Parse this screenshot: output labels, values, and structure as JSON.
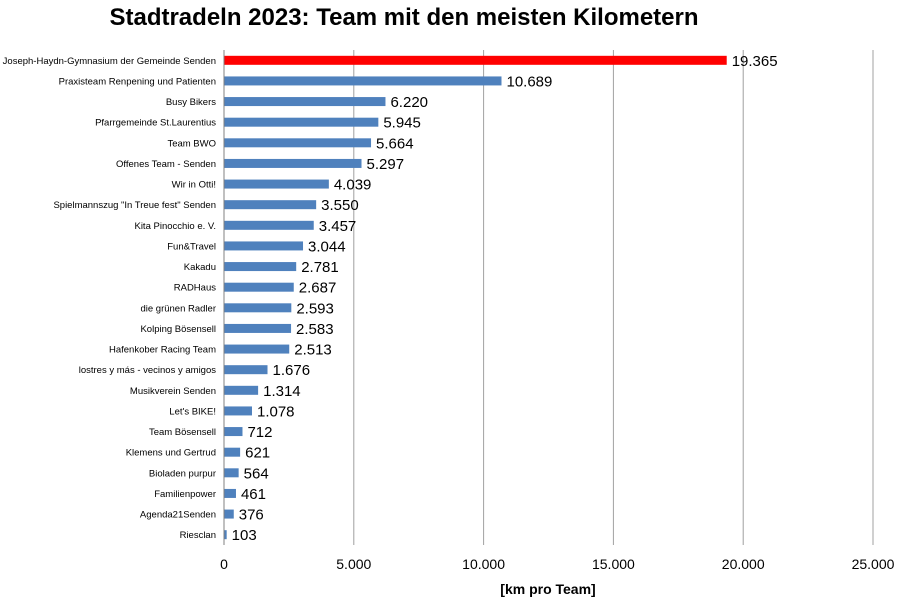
{
  "chart_data": {
    "type": "bar",
    "orientation": "horizontal",
    "title": "Stadtradeln 2023: Team mit den meisten Kilometern",
    "xlabel": "[km pro Team]",
    "ylabel": "",
    "xlim": [
      0,
      25000
    ],
    "xticks": [
      0,
      5000,
      10000,
      15000,
      20000,
      25000
    ],
    "xtick_labels": [
      "0",
      "5.000",
      "10.000",
      "15.000",
      "20.000",
      "25.000"
    ],
    "grid": "vertical",
    "legend": "none",
    "colors": {
      "default_bar": "#4f81bd",
      "highlight_bar": "#ff0000"
    },
    "highlight_index": 0,
    "categories": [
      "Joseph-Haydn-Gymnasium der Gemeinde Senden",
      "Praxisteam Renpening und Patienten",
      "Busy Bikers",
      "Pfarrgemeinde St.Laurentius",
      "Team BWO",
      "Offenes Team - Senden",
      "Wir in Otti!",
      "Spielmannszug \"In Treue fest\" Senden",
      "Kita Pinocchio e. V.",
      "Fun&Travel",
      "Kakadu",
      "RADHaus",
      "die grünen Radler",
      "Kolping Bösensell",
      "Hafenkober Racing Team",
      "lostres y más - vecinos y amigos",
      "Musikverein Senden",
      "Let's BIKE!",
      "Team Bösensell",
      "Klemens und Gertrud",
      "Bioladen purpur",
      "Familienpower",
      "Agenda21Senden",
      "Riesclan"
    ],
    "values": [
      19365,
      10689,
      6220,
      5945,
      5664,
      5297,
      4039,
      3550,
      3457,
      3044,
      2781,
      2687,
      2593,
      2583,
      2513,
      1676,
      1314,
      1078,
      712,
      621,
      564,
      461,
      376,
      103
    ],
    "value_labels": [
      "19.365",
      "10.689",
      "6.220",
      "5.945",
      "5.664",
      "5.297",
      "4.039",
      "3.550",
      "3.457",
      "3.044",
      "2.781",
      "2.687",
      "2.593",
      "2.583",
      "2.513",
      "1.676",
      "1.314",
      "1.078",
      "712",
      "621",
      "564",
      "461",
      "376",
      "103"
    ]
  }
}
